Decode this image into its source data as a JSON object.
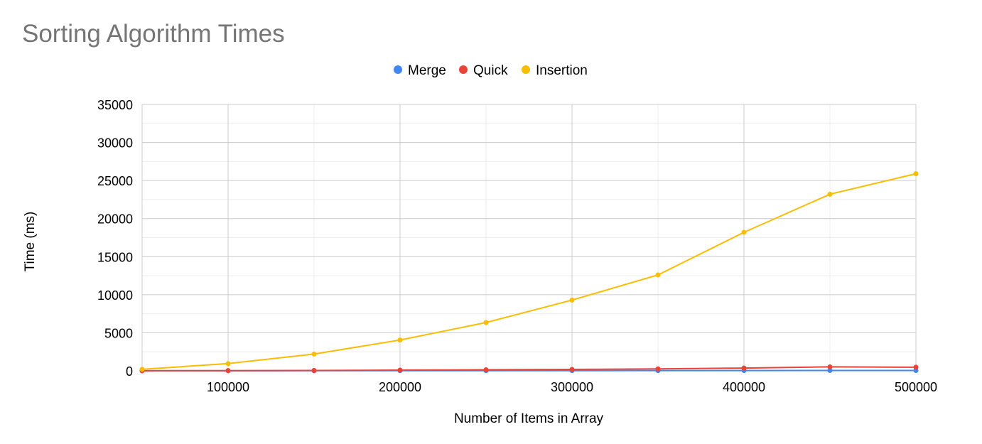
{
  "chart_data": {
    "type": "line",
    "title": "Sorting Algorithm Times",
    "xlabel": "Number of Items in Array",
    "ylabel": "Time (ms)",
    "xlim": [
      50000,
      500000
    ],
    "ylim": [
      0,
      35000
    ],
    "x_ticks": [
      100000,
      200000,
      300000,
      400000,
      500000
    ],
    "y_ticks": [
      0,
      5000,
      10000,
      15000,
      20000,
      25000,
      30000,
      35000
    ],
    "grid": true,
    "legend_position": "top-center",
    "x": [
      50000,
      100000,
      150000,
      200000,
      250000,
      300000,
      350000,
      400000,
      450000,
      500000
    ],
    "series": [
      {
        "name": "Merge",
        "color": "#4285f4",
        "values": [
          5,
          10,
          15,
          20,
          25,
          30,
          35,
          40,
          45,
          50
        ]
      },
      {
        "name": "Quick",
        "color": "#ea4335",
        "values": [
          10,
          30,
          50,
          90,
          140,
          190,
          260,
          360,
          520,
          480
        ]
      },
      {
        "name": "Insertion",
        "color": "#fbbc04",
        "values": [
          200,
          950,
          2200,
          4050,
          6350,
          9300,
          12600,
          18200,
          23200,
          25900
        ]
      }
    ]
  }
}
